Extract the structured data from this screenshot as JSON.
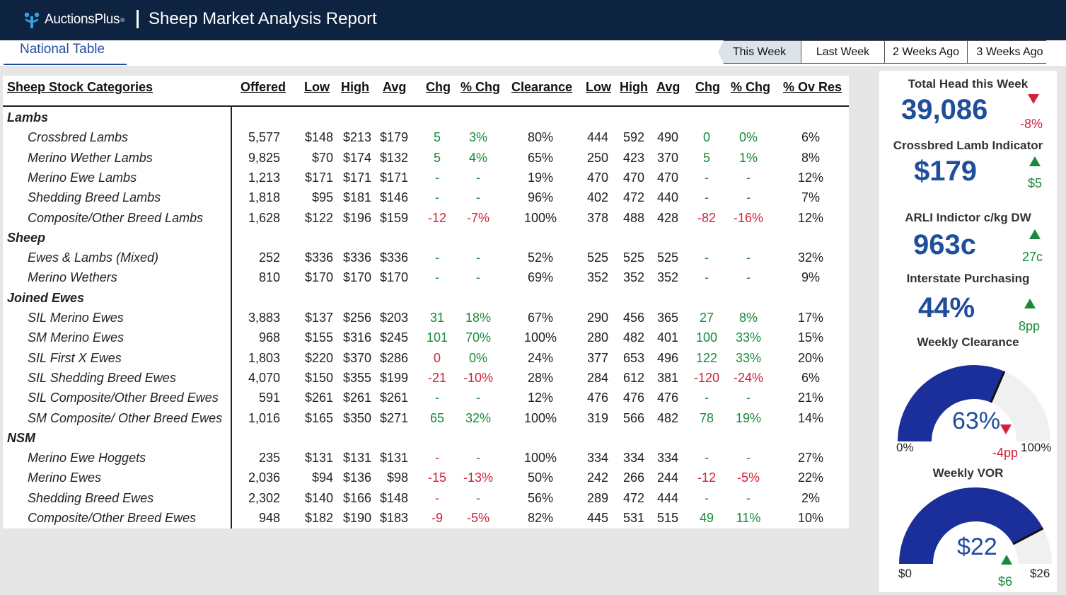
{
  "header": {
    "logo_text": "AuctionsPlus",
    "logo_tm": "®",
    "title": "Sheep Market Analysis Report"
  },
  "tabs": {
    "national": "National Table"
  },
  "week_buttons": [
    "This Week",
    "Last Week",
    "2 Weeks Ago",
    "3 Weeks Ago"
  ],
  "table": {
    "headers": {
      "category": "Sheep Stock Categories",
      "offered": "Offered",
      "low": "Low",
      "high": "High",
      "avg": "Avg",
      "chg": "Chg",
      "pchg": "% Chg",
      "clearance": "Clearance",
      "low2": "Low",
      "high2": "High",
      "avg2": "Avg",
      "chg2": "Chg",
      "pchg2": "% Chg",
      "ovres": "% Ov Res"
    },
    "rows": [
      {
        "group": "Lambs"
      },
      {
        "name": "Crossbred Lambs",
        "offered": "5,577",
        "low": "$148",
        "high": "$213",
        "avg": "$179",
        "chg": "5",
        "pchg": "3%",
        "chg_dir": "pos",
        "clearance": "80%",
        "low2": "444",
        "high2": "592",
        "avg2": "490",
        "chg2": "0",
        "pchg2": "0%",
        "chg2_dir": "pos",
        "ovres": "6%"
      },
      {
        "name": "Merino Wether Lambs",
        "offered": "9,825",
        "low": "$70",
        "high": "$174",
        "avg": "$132",
        "chg": "5",
        "pchg": "4%",
        "chg_dir": "pos",
        "clearance": "65%",
        "low2": "250",
        "high2": "423",
        "avg2": "370",
        "chg2": "5",
        "pchg2": "1%",
        "chg2_dir": "pos",
        "ovres": "8%"
      },
      {
        "name": "Merino Ewe Lambs",
        "offered": "1,213",
        "low": "$171",
        "high": "$171",
        "avg": "$171",
        "chg": "-",
        "pchg": "-",
        "chg_dir": "pos",
        "clearance": "19%",
        "low2": "470",
        "high2": "470",
        "avg2": "470",
        "chg2": "-",
        "pchg2": "-",
        "chg2_dir": "pos",
        "ovres": "12%"
      },
      {
        "name": "Shedding Breed Lambs",
        "offered": "1,818",
        "low": "$95",
        "high": "$181",
        "avg": "$146",
        "chg": "-",
        "pchg": "-",
        "chg_dir": "pos",
        "clearance": "96%",
        "low2": "402",
        "high2": "472",
        "avg2": "440",
        "chg2": "-",
        "pchg2": "-",
        "chg2_dir": "pos",
        "ovres": "7%"
      },
      {
        "name": "Composite/Other Breed Lambs",
        "offered": "1,628",
        "low": "$122",
        "high": "$196",
        "avg": "$159",
        "chg": "-12",
        "pchg": "-7%",
        "chg_dir": "neg",
        "clearance": "100%",
        "low2": "378",
        "high2": "488",
        "avg2": "428",
        "chg2": "-82",
        "pchg2": "-16%",
        "chg2_dir": "neg",
        "ovres": "12%"
      },
      {
        "group": "Sheep"
      },
      {
        "name": "Ewes & Lambs (Mixed)",
        "offered": "252",
        "low": "$336",
        "high": "$336",
        "avg": "$336",
        "chg": "-",
        "pchg": "-",
        "chg_dir": "pos",
        "clearance": "52%",
        "low2": "525",
        "high2": "525",
        "avg2": "525",
        "chg2": "-",
        "pchg2": "-",
        "chg2_dir": "pos",
        "ovres": "32%"
      },
      {
        "name": "Merino Wethers",
        "offered": "810",
        "low": "$170",
        "high": "$170",
        "avg": "$170",
        "chg": "-",
        "pchg": "-",
        "chg_dir": "pos",
        "clearance": "69%",
        "low2": "352",
        "high2": "352",
        "avg2": "352",
        "chg2": "-",
        "pchg2": "-",
        "chg2_dir": "pos",
        "ovres": "9%"
      },
      {
        "group": "Joined Ewes"
      },
      {
        "name": "SIL Merino Ewes",
        "offered": "3,883",
        "low": "$137",
        "high": "$256",
        "avg": "$203",
        "chg": "31",
        "pchg": "18%",
        "chg_dir": "pos",
        "clearance": "67%",
        "low2": "290",
        "high2": "456",
        "avg2": "365",
        "chg2": "27",
        "pchg2": "8%",
        "chg2_dir": "pos",
        "ovres": "17%"
      },
      {
        "name": "SM Merino Ewes",
        "offered": "968",
        "low": "$155",
        "high": "$316",
        "avg": "$245",
        "chg": "101",
        "pchg": "70%",
        "chg_dir": "pos",
        "clearance": "100%",
        "low2": "280",
        "high2": "482",
        "avg2": "401",
        "chg2": "100",
        "pchg2": "33%",
        "chg2_dir": "pos",
        "ovres": "15%"
      },
      {
        "name": "SIL First X Ewes",
        "offered": "1,803",
        "low": "$220",
        "high": "$370",
        "avg": "$286",
        "chg": "0",
        "pchg": "0%",
        "chg_dir": "neg",
        "pchg_dir": "pos",
        "clearance": "24%",
        "low2": "377",
        "high2": "653",
        "avg2": "496",
        "chg2": "122",
        "pchg2": "33%",
        "chg2_dir": "pos",
        "ovres": "20%"
      },
      {
        "name": "SIL Shedding Breed Ewes",
        "offered": "4,070",
        "low": "$150",
        "high": "$355",
        "avg": "$199",
        "chg": "-21",
        "pchg": "-10%",
        "chg_dir": "neg",
        "clearance": "28%",
        "low2": "284",
        "high2": "612",
        "avg2": "381",
        "chg2": "-120",
        "pchg2": "-24%",
        "chg2_dir": "neg",
        "ovres": "6%"
      },
      {
        "name": "SIL Composite/Other Breed Ewes",
        "offered": "591",
        "low": "$261",
        "high": "$261",
        "avg": "$261",
        "chg": "-",
        "pchg": "-",
        "chg_dir": "pos",
        "clearance": "12%",
        "low2": "476",
        "high2": "476",
        "avg2": "476",
        "chg2": "-",
        "pchg2": "-",
        "chg2_dir": "pos",
        "ovres": "21%"
      },
      {
        "name": "SM Composite/ Other Breed Ewes",
        "offered": "1,016",
        "low": "$165",
        "high": "$350",
        "avg": "$271",
        "chg": "65",
        "pchg": "32%",
        "chg_dir": "pos",
        "clearance": "100%",
        "low2": "319",
        "high2": "566",
        "avg2": "482",
        "chg2": "78",
        "pchg2": "19%",
        "chg2_dir": "pos",
        "ovres": "14%"
      },
      {
        "group": "NSM"
      },
      {
        "name": "Merino Ewe Hoggets",
        "offered": "235",
        "low": "$131",
        "high": "$131",
        "avg": "$131",
        "chg": "-",
        "pchg": "-",
        "chg_dir": "neg",
        "pchg_dir": "pos",
        "clearance": "100%",
        "low2": "334",
        "high2": "334",
        "avg2": "334",
        "chg2": "-",
        "pchg2": "-",
        "chg2_dir": "pos",
        "ovres": "27%"
      },
      {
        "name": "Merino Ewes",
        "offered": "2,036",
        "low": "$94",
        "high": "$136",
        "avg": "$98",
        "chg": "-15",
        "pchg": "-13%",
        "chg_dir": "neg",
        "clearance": "50%",
        "low2": "242",
        "high2": "266",
        "avg2": "244",
        "chg2": "-12",
        "pchg2": "-5%",
        "chg2_dir": "neg",
        "ovres": "22%"
      },
      {
        "name": "Shedding Breed Ewes",
        "offered": "2,302",
        "low": "$140",
        "high": "$166",
        "avg": "$148",
        "chg": "-",
        "pchg": "-",
        "chg_dir": "neg",
        "pchg_dir": "pos",
        "clearance": "56%",
        "low2": "289",
        "high2": "472",
        "avg2": "444",
        "chg2": "-",
        "pchg2": "-",
        "chg2_dir": "pos",
        "ovres": "2%"
      },
      {
        "name": "Composite/Other Breed Ewes",
        "offered": "948",
        "low": "$182",
        "high": "$190",
        "avg": "$183",
        "chg": "-9",
        "pchg": "-5%",
        "chg_dir": "neg",
        "clearance": "82%",
        "low2": "445",
        "high2": "531",
        "avg2": "515",
        "chg2": "49",
        "pchg2": "11%",
        "chg2_dir": "pos",
        "ovres": "10%"
      }
    ]
  },
  "side": {
    "total_head": {
      "label": "Total Head this Week",
      "value": "39,086",
      "change": "-8%",
      "dir": "down"
    },
    "lamb_indicator": {
      "label": "Crossbred Lamb Indicator",
      "value": "$179",
      "change": "$5",
      "dir": "up"
    },
    "arli": {
      "label": "ARLI Indictor c/kg DW",
      "value": "963c",
      "change": "27c",
      "dir": "up"
    },
    "interstate": {
      "label": "Interstate Purchasing",
      "value": "44%",
      "change": "8pp",
      "dir": "up"
    },
    "clearance": {
      "label": "Weekly Clearance",
      "value": "63%",
      "fraction": 0.63,
      "change": "-4pp",
      "dir": "down",
      "min": "0%",
      "max": "100%"
    },
    "vor": {
      "label": "Weekly VOR",
      "value": "$22",
      "fraction": 0.846,
      "change": "$6",
      "dir": "up",
      "min": "$0",
      "max": "$26"
    }
  },
  "colors": {
    "navy": "#0d2340",
    "blue": "#1f4e9c",
    "gauge": "#1b2f9a",
    "pos": "#1a8a3a",
    "neg": "#d0233a"
  }
}
